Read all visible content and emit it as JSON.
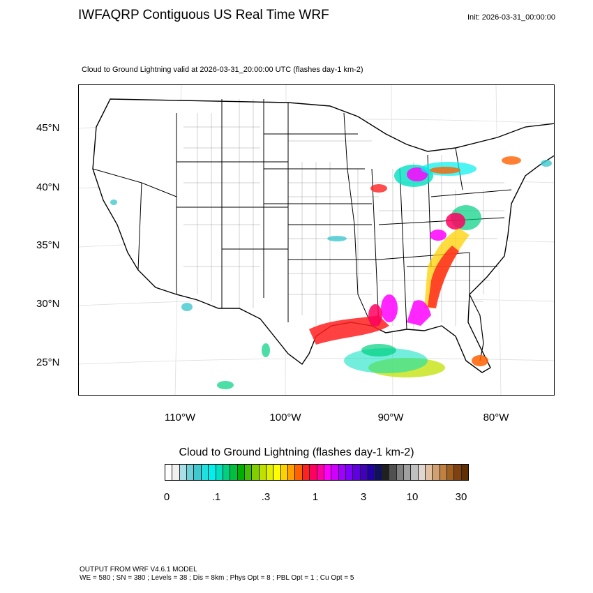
{
  "title": "IWFAQRP Contiguous US Real Time WRF",
  "init": "Init: 2026-03-31_00:00:00",
  "plot_title": "Cloud to Ground Lightning valid at 2026-03-31_20:00:00 UTC   (flashes day-1 km-2)",
  "lat_labels": [
    "45°N",
    "40°N",
    "35°N",
    "30°N",
    "25°N"
  ],
  "lon_labels": [
    "110°W",
    "100°W",
    "90°W",
    "80°W"
  ],
  "colorbar": {
    "title": "Cloud to Ground Lightning  (flashes day-1 km-2)",
    "ticks": [
      "0",
      ".1",
      ".3",
      "1",
      "3",
      "10",
      "30"
    ],
    "colors": [
      "#ffffff",
      "#f0f0f0",
      "#a8e0e8",
      "#70d0d8",
      "#40c8d0",
      "#20e0e0",
      "#00f0f0",
      "#00e0c0",
      "#00d080",
      "#00c040",
      "#00b000",
      "#40c000",
      "#80d000",
      "#c0e000",
      "#e0f000",
      "#ffff00",
      "#ffd000",
      "#ffa000",
      "#ff6000",
      "#ff2020",
      "#ff0060",
      "#ff00a0",
      "#ff00ff",
      "#d000ff",
      "#a000ff",
      "#8000ff",
      "#6000e0",
      "#4000c0",
      "#2000a0",
      "#101060",
      "#202020",
      "#505050",
      "#808080",
      "#a0a0a0",
      "#c0c0c0",
      "#e0d8d0",
      "#e0c0a0",
      "#d0a070",
      "#c08040",
      "#a06020",
      "#804010",
      "#603000"
    ]
  },
  "footer": {
    "line1": "OUTPUT FROM WRF V4.6.1 MODEL",
    "line2": "WE = 580 ; SN = 380 ; Levels = 38 ; Dis = 8km ; Phys Opt = 8 ; PBL Opt = 1 ; Cu Opt = 5"
  }
}
